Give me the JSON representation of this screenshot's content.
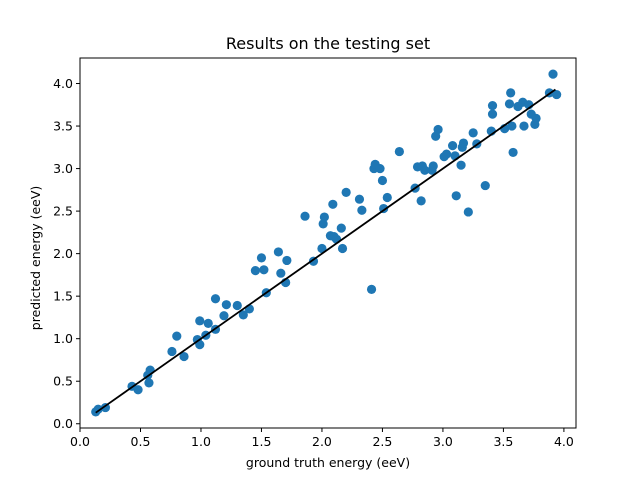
{
  "chart_data": {
    "type": "scatter",
    "title": "Results on the testing set",
    "xlabel": "ground truth energy (eeV)",
    "ylabel": "predicted energy (eeV)",
    "xlim": [
      0.0,
      4.1
    ],
    "ylim": [
      -0.05,
      4.3
    ],
    "xticks": [
      "0.0",
      "0.5",
      "1.0",
      "1.5",
      "2.0",
      "2.5",
      "3.0",
      "3.5",
      "4.0"
    ],
    "yticks": [
      "0.0",
      "0.5",
      "1.0",
      "1.5",
      "2.0",
      "2.5",
      "3.0",
      "3.5",
      "4.0"
    ],
    "grid": false,
    "legend": "none",
    "point_color": "#1f77b4",
    "line_color": "#000000",
    "fit_line": {
      "x": [
        0.13,
        3.93
      ],
      "y": [
        0.13,
        3.93
      ]
    },
    "points": [
      {
        "x": 0.13,
        "y": 0.14
      },
      {
        "x": 0.15,
        "y": 0.17
      },
      {
        "x": 0.21,
        "y": 0.19
      },
      {
        "x": 0.43,
        "y": 0.44
      },
      {
        "x": 0.48,
        "y": 0.4
      },
      {
        "x": 0.56,
        "y": 0.57
      },
      {
        "x": 0.57,
        "y": 0.48
      },
      {
        "x": 0.58,
        "y": 0.63
      },
      {
        "x": 0.76,
        "y": 0.85
      },
      {
        "x": 0.8,
        "y": 1.03
      },
      {
        "x": 0.86,
        "y": 0.79
      },
      {
        "x": 0.97,
        "y": 0.99
      },
      {
        "x": 0.99,
        "y": 0.93
      },
      {
        "x": 0.99,
        "y": 1.21
      },
      {
        "x": 1.04,
        "y": 1.04
      },
      {
        "x": 1.06,
        "y": 1.18
      },
      {
        "x": 1.12,
        "y": 1.47
      },
      {
        "x": 1.12,
        "y": 1.11
      },
      {
        "x": 1.19,
        "y": 1.27
      },
      {
        "x": 1.21,
        "y": 1.4
      },
      {
        "x": 1.3,
        "y": 1.39
      },
      {
        "x": 1.35,
        "y": 1.28
      },
      {
        "x": 1.4,
        "y": 1.35
      },
      {
        "x": 1.45,
        "y": 1.8
      },
      {
        "x": 1.5,
        "y": 1.95
      },
      {
        "x": 1.52,
        "y": 1.81
      },
      {
        "x": 1.54,
        "y": 1.54
      },
      {
        "x": 1.64,
        "y": 2.02
      },
      {
        "x": 1.66,
        "y": 1.77
      },
      {
        "x": 1.7,
        "y": 1.66
      },
      {
        "x": 1.71,
        "y": 1.92
      },
      {
        "x": 1.86,
        "y": 2.44
      },
      {
        "x": 1.93,
        "y": 1.91
      },
      {
        "x": 2.0,
        "y": 2.06
      },
      {
        "x": 2.01,
        "y": 2.35
      },
      {
        "x": 2.02,
        "y": 2.43
      },
      {
        "x": 2.07,
        "y": 2.21
      },
      {
        "x": 2.09,
        "y": 2.58
      },
      {
        "x": 2.1,
        "y": 2.2
      },
      {
        "x": 2.12,
        "y": 2.17
      },
      {
        "x": 2.16,
        "y": 2.3
      },
      {
        "x": 2.17,
        "y": 2.06
      },
      {
        "x": 2.2,
        "y": 2.72
      },
      {
        "x": 2.31,
        "y": 2.64
      },
      {
        "x": 2.33,
        "y": 2.51
      },
      {
        "x": 2.41,
        "y": 1.58
      },
      {
        "x": 2.43,
        "y": 3.0
      },
      {
        "x": 2.44,
        "y": 3.05
      },
      {
        "x": 2.48,
        "y": 3.0
      },
      {
        "x": 2.5,
        "y": 2.86
      },
      {
        "x": 2.51,
        "y": 2.53
      },
      {
        "x": 2.54,
        "y": 2.66
      },
      {
        "x": 2.64,
        "y": 3.2
      },
      {
        "x": 2.77,
        "y": 2.77
      },
      {
        "x": 2.79,
        "y": 3.02
      },
      {
        "x": 2.82,
        "y": 2.62
      },
      {
        "x": 2.83,
        "y": 3.03
      },
      {
        "x": 2.85,
        "y": 2.98
      },
      {
        "x": 2.91,
        "y": 2.98
      },
      {
        "x": 2.92,
        "y": 3.03
      },
      {
        "x": 2.94,
        "y": 3.38
      },
      {
        "x": 2.96,
        "y": 3.46
      },
      {
        "x": 3.01,
        "y": 3.14
      },
      {
        "x": 3.03,
        "y": 3.17
      },
      {
        "x": 3.08,
        "y": 3.27
      },
      {
        "x": 3.1,
        "y": 3.15
      },
      {
        "x": 3.11,
        "y": 2.68
      },
      {
        "x": 3.15,
        "y": 3.04
      },
      {
        "x": 3.16,
        "y": 3.25
      },
      {
        "x": 3.17,
        "y": 3.3
      },
      {
        "x": 3.21,
        "y": 2.49
      },
      {
        "x": 3.25,
        "y": 3.42
      },
      {
        "x": 3.28,
        "y": 3.29
      },
      {
        "x": 3.35,
        "y": 2.8
      },
      {
        "x": 3.4,
        "y": 3.44
      },
      {
        "x": 3.41,
        "y": 3.64
      },
      {
        "x": 3.41,
        "y": 3.74
      },
      {
        "x": 3.51,
        "y": 3.47
      },
      {
        "x": 3.55,
        "y": 3.76
      },
      {
        "x": 3.56,
        "y": 3.89
      },
      {
        "x": 3.57,
        "y": 3.5
      },
      {
        "x": 3.58,
        "y": 3.19
      },
      {
        "x": 3.62,
        "y": 3.73
      },
      {
        "x": 3.66,
        "y": 3.78
      },
      {
        "x": 3.67,
        "y": 3.5
      },
      {
        "x": 3.71,
        "y": 3.75
      },
      {
        "x": 3.73,
        "y": 3.64
      },
      {
        "x": 3.76,
        "y": 3.52
      },
      {
        "x": 3.77,
        "y": 3.59
      },
      {
        "x": 3.88,
        "y": 3.89
      },
      {
        "x": 3.91,
        "y": 4.11
      },
      {
        "x": 3.94,
        "y": 3.87
      }
    ]
  }
}
